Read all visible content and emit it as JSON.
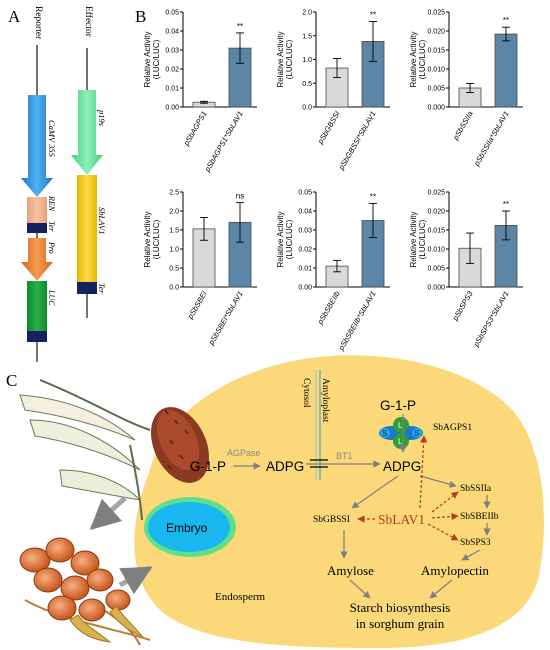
{
  "panel_a": {
    "letter": "A",
    "reporter": {
      "title": "Reporter",
      "parts": {
        "promoter": "CaMV 35S",
        "ren": "REN",
        "ter": "Ter",
        "pro": "Pro",
        "luc": "LUC"
      }
    },
    "effector": {
      "title": "Effector",
      "parts": {
        "promoter": "p19s",
        "gene": "SbLAV1",
        "ter": "Ter"
      }
    }
  },
  "panel_b": {
    "letter": "B",
    "colors": {
      "control": "#d9d9d9",
      "treatment": "#5b86a8"
    }
  },
  "chart_data": [
    {
      "type": "bar",
      "ylabel": "Relative Activity (LUC/LUC)",
      "categories": [
        "pSbAGPS1",
        "pSbAGPS1*SbLAV1"
      ],
      "values": [
        0.0025,
        0.031
      ],
      "errors": [
        0.0005,
        0.008
      ],
      "ylim": [
        0,
        0.05
      ],
      "yticks": [
        "0.00",
        "0.01",
        "0.02",
        "0.03",
        "0.04",
        "0.05"
      ],
      "significance": "**"
    },
    {
      "type": "bar",
      "ylabel": "Relative Activity (LUC/LUC)",
      "categories": [
        "pSbGBSSI",
        "pSbGBSSI*SbLAV1"
      ],
      "values": [
        0.82,
        1.38
      ],
      "errors": [
        0.2,
        0.42
      ],
      "ylim": [
        0,
        2.0
      ],
      "yticks": [
        "0.0",
        "0.5",
        "1.0",
        "1.5",
        "2.0"
      ],
      "significance": "**"
    },
    {
      "type": "bar",
      "ylabel": "Relative Activity (LUC/LUC)",
      "categories": [
        "pSbSSIIa",
        "pSbSSIIa*SbLAV1"
      ],
      "values": [
        0.005,
        0.0192
      ],
      "errors": [
        0.0012,
        0.0018
      ],
      "ylim": [
        0,
        0.025
      ],
      "yticks": [
        "0.000",
        "0.005",
        "0.010",
        "0.015",
        "0.020",
        "0.025"
      ],
      "significance": "**"
    },
    {
      "type": "bar",
      "ylabel": "Relative Activity (LUC/LUC)",
      "categories": [
        "pSbSBEI",
        "pSbSBEI*SbLAV1"
      ],
      "values": [
        1.53,
        1.7
      ],
      "errors": [
        0.3,
        0.52
      ],
      "ylim": [
        0,
        2.5
      ],
      "yticks": [
        "0.0",
        "0.5",
        "1.0",
        "1.5",
        "2.0",
        "2.5"
      ],
      "significance": "ns"
    },
    {
      "type": "bar",
      "ylabel": "Relative Activity (LUC/LUC)",
      "categories": [
        "pSbSBEIIb",
        "pSbSBEIIb*SbLAV1"
      ],
      "values": [
        0.011,
        0.035
      ],
      "errors": [
        0.003,
        0.009
      ],
      "ylim": [
        0,
        0.05
      ],
      "yticks": [
        "0.00",
        "0.01",
        "0.02",
        "0.03",
        "0.04",
        "0.05"
      ],
      "significance": "**"
    },
    {
      "type": "bar",
      "ylabel": "Relative Activity (LUC/LUC)",
      "categories": [
        "pSbSPS3",
        "pSbSPS3*SbLAV1"
      ],
      "values": [
        0.0102,
        0.0162
      ],
      "errors": [
        0.004,
        0.0038
      ],
      "ylim": [
        0,
        0.025
      ],
      "yticks": [
        "0.000",
        "0.005",
        "0.010",
        "0.015",
        "0.020",
        "0.025"
      ],
      "significance": "**"
    }
  ],
  "panel_c": {
    "letter": "C",
    "cytosol": "Cytosol",
    "amyloplast": "Amyloplast",
    "g1p_left": "G-1-P",
    "agpase": "AGPase",
    "adpg_left": "ADPG",
    "bt1": "BT1",
    "adpg_right": "ADPG",
    "g1p_right": "G-1-P",
    "agp_s": "S",
    "agp_l": "L",
    "sbagps1": "SbAGPS1",
    "sbssiia": "SbSSIIa",
    "sbsbeiib": "SbSBEIIb",
    "sbsps3": "SbSPS3",
    "sbgbssi": "SbGBSSI",
    "sblav1": "SbLAV1",
    "embryo": "Embryo",
    "endosperm": "Endosperm",
    "amylose": "Amylose",
    "amylopectin": "Amylopectin",
    "starch_line1": "Starch biosynthesis",
    "starch_line2": "in sorghum grain"
  }
}
